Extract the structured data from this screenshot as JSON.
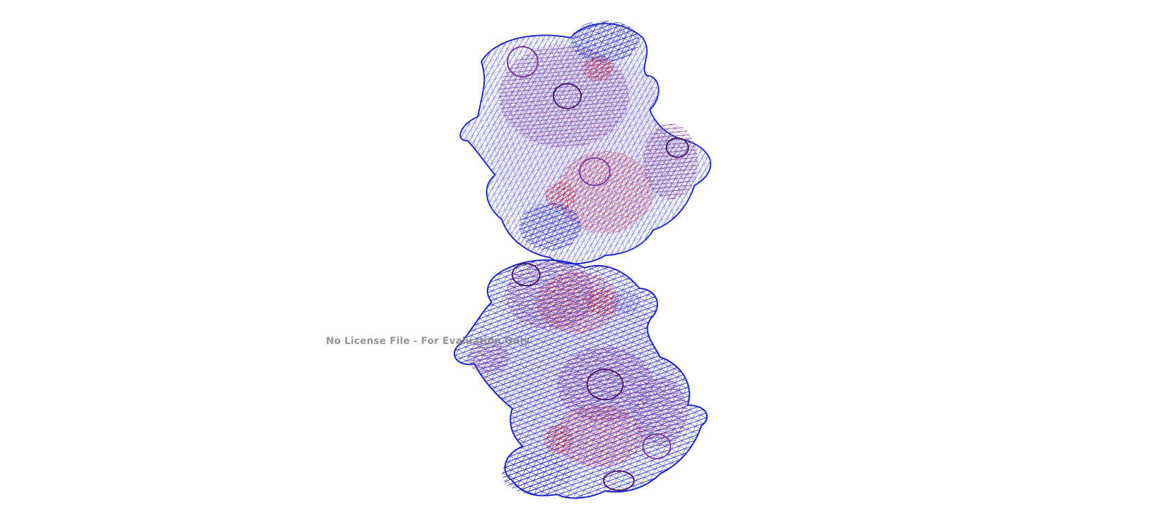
{
  "viewer": {
    "watermark_text": "No License File - For Evaluation Only",
    "background_color": "#ffffff",
    "mesh_colors": {
      "blue": "#1a22c8",
      "light_blue": "#5a62d8",
      "purple": "#7a3c9a",
      "dark_purple": "#4a1a6a",
      "red": "#c41a2a",
      "pink_fill": "#e8d8ee"
    }
  }
}
